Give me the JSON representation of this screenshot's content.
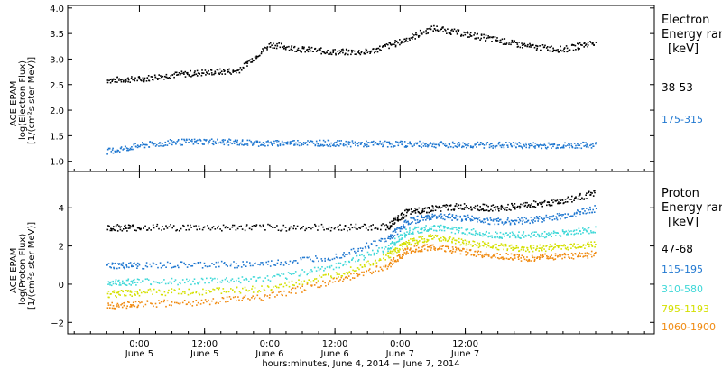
{
  "chart_data": [
    {
      "type": "scatter",
      "panel": "electron",
      "ylabel_lines": [
        "ACE EPAM",
        "log(Electron Flux)",
        "[1/(cm²s ster MeV)]"
      ],
      "ylim": [
        0.8,
        4.05
      ],
      "yticks": [
        1.0,
        1.5,
        2.0,
        2.5,
        3.0,
        3.5,
        4.0
      ],
      "ytick_labels": [
        "1.0",
        "1.5",
        "2.0",
        "2.5",
        "3.0",
        "3.5",
        "4.0"
      ],
      "legend_title_lines": [
        "Electron",
        "Energy ranges",
        "[keV]"
      ],
      "series": [
        {
          "name": "38-53",
          "color": "#000000",
          "x": [
            -0.25,
            0.0,
            0.25,
            0.5,
            0.75,
            1.0,
            1.25,
            1.5,
            1.75,
            2.0,
            2.25,
            2.5,
            2.75,
            3.0,
            3.25,
            3.5
          ],
          "y": [
            2.6,
            2.62,
            2.7,
            2.75,
            2.78,
            3.3,
            3.2,
            3.15,
            3.15,
            3.35,
            3.62,
            3.5,
            3.38,
            3.25,
            3.2,
            3.35
          ]
        },
        {
          "name": "175-315",
          "color": "#1f77d0",
          "x": [
            -0.25,
            0.0,
            0.25,
            0.5,
            0.75,
            1.0,
            1.25,
            1.5,
            1.75,
            2.0,
            2.25,
            2.5,
            2.75,
            3.0,
            3.25,
            3.5
          ],
          "y": [
            1.2,
            1.32,
            1.38,
            1.4,
            1.38,
            1.36,
            1.38,
            1.36,
            1.35,
            1.35,
            1.34,
            1.33,
            1.33,
            1.32,
            1.32,
            1.33
          ]
        }
      ]
    },
    {
      "type": "scatter",
      "panel": "proton",
      "ylabel_lines": [
        "ACE EPAM",
        "log(Proton Flux)",
        "[1/(cm²s ster MeV)]"
      ],
      "ylim": [
        -2.6,
        5.9
      ],
      "yticks": [
        -2,
        0,
        2,
        4
      ],
      "ytick_labels": [
        "−2",
        "0",
        "2",
        "4"
      ],
      "legend_title_lines": [
        "Proton",
        "Energy ranges",
        "[keV]"
      ],
      "series": [
        {
          "name": "47-68",
          "color": "#000000",
          "x": [
            -0.25,
            0.0,
            0.5,
            1.0,
            1.5,
            1.9,
            2.05,
            2.25,
            2.5,
            2.75,
            3.0,
            3.25,
            3.5
          ],
          "y": [
            3.0,
            3.0,
            3.0,
            3.0,
            3.0,
            3.05,
            3.8,
            4.0,
            4.1,
            4.0,
            4.2,
            4.4,
            4.8
          ]
        },
        {
          "name": "115-195",
          "color": "#1f77d0",
          "x": [
            -0.25,
            0.0,
            0.5,
            1.0,
            1.5,
            1.9,
            2.05,
            2.25,
            2.5,
            2.75,
            3.0,
            3.25,
            3.5
          ],
          "y": [
            1.0,
            1.0,
            1.05,
            1.1,
            1.5,
            2.4,
            3.3,
            3.6,
            3.5,
            3.3,
            3.4,
            3.6,
            4.0
          ]
        },
        {
          "name": "310-580",
          "color": "#3fd8d8",
          "x": [
            -0.25,
            0.0,
            0.5,
            1.0,
            1.5,
            1.9,
            2.05,
            2.25,
            2.5,
            2.75,
            3.0,
            3.25,
            3.5
          ],
          "y": [
            0.1,
            0.15,
            0.2,
            0.3,
            1.0,
            1.9,
            2.8,
            3.0,
            2.8,
            2.6,
            2.6,
            2.7,
            2.9
          ]
        },
        {
          "name": "795-1193",
          "color": "#d4e000",
          "x": [
            -0.25,
            0.0,
            0.5,
            1.0,
            1.5,
            1.9,
            2.05,
            2.25,
            2.5,
            2.75,
            3.0,
            3.25,
            3.5
          ],
          "y": [
            -0.5,
            -0.4,
            -0.35,
            -0.2,
            0.5,
            1.5,
            2.2,
            2.5,
            2.2,
            2.0,
            1.9,
            2.0,
            2.1
          ]
        },
        {
          "name": "1060-1900",
          "color": "#f08a10",
          "x": [
            -0.25,
            0.0,
            0.5,
            1.0,
            1.5,
            1.9,
            2.05,
            2.25,
            2.5,
            2.75,
            3.0,
            3.25,
            3.5
          ],
          "y": [
            -1.1,
            -1.0,
            -0.9,
            -0.6,
            0.2,
            1.0,
            1.8,
            2.0,
            1.7,
            1.5,
            1.4,
            1.5,
            1.6
          ]
        }
      ]
    }
  ],
  "x_axis": {
    "range": [
      -0.55,
      3.95
    ],
    "ticks": [
      {
        "x": 0.0,
        "hh": "0:00",
        "day": "June 5"
      },
      {
        "x": 0.5,
        "hh": "12:00",
        "day": "June 5"
      },
      {
        "x": 1.0,
        "hh": "0:00",
        "day": "June 6"
      },
      {
        "x": 1.5,
        "hh": "12:00",
        "day": "June 6"
      },
      {
        "x": 2.0,
        "hh": "0:00",
        "day": "June 7"
      },
      {
        "x": 2.5,
        "hh": "12:00",
        "day": "June 7"
      }
    ],
    "label": "hours:minutes, June  4, 2014 − June  7, 2014"
  }
}
